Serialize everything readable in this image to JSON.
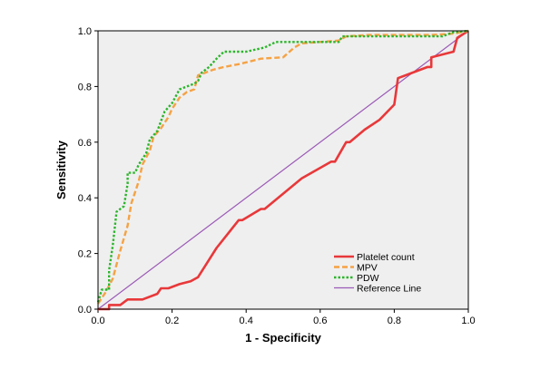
{
  "chart_data": {
    "type": "line",
    "xlabel": "1 - Specificity",
    "ylabel": "Sensitivity",
    "xlim": [
      0,
      1
    ],
    "ylim": [
      0,
      1
    ],
    "xticks": [
      "0.0",
      "0.2",
      "0.4",
      "0.6",
      "0.8",
      "1.0"
    ],
    "yticks": [
      "0.0",
      "0.2",
      "0.4",
      "0.6",
      "0.8",
      "1.0"
    ],
    "grid": false,
    "legend_position": "bottom-right",
    "plot_background": "#efefef",
    "series": [
      {
        "name": "Platelet count",
        "color": "#e8383a",
        "dash": "solid",
        "points": [
          [
            0,
            0
          ],
          [
            0.03,
            0
          ],
          [
            0.03,
            0.015
          ],
          [
            0.06,
            0.015
          ],
          [
            0.08,
            0.035
          ],
          [
            0.12,
            0.035
          ],
          [
            0.16,
            0.055
          ],
          [
            0.17,
            0.075
          ],
          [
            0.19,
            0.075
          ],
          [
            0.22,
            0.09
          ],
          [
            0.25,
            0.1
          ],
          [
            0.27,
            0.115
          ],
          [
            0.32,
            0.22
          ],
          [
            0.38,
            0.32
          ],
          [
            0.39,
            0.32
          ],
          [
            0.44,
            0.36
          ],
          [
            0.45,
            0.36
          ],
          [
            0.55,
            0.47
          ],
          [
            0.63,
            0.53
          ],
          [
            0.64,
            0.53
          ],
          [
            0.67,
            0.6
          ],
          [
            0.68,
            0.6
          ],
          [
            0.72,
            0.645
          ],
          [
            0.76,
            0.68
          ],
          [
            0.8,
            0.735
          ],
          [
            0.81,
            0.83
          ],
          [
            0.84,
            0.845
          ],
          [
            0.89,
            0.87
          ],
          [
            0.9,
            0.87
          ],
          [
            0.9,
            0.905
          ],
          [
            0.93,
            0.915
          ],
          [
            0.96,
            0.925
          ],
          [
            0.97,
            0.975
          ],
          [
            1.0,
            1.0
          ]
        ]
      },
      {
        "name": "MPV",
        "color": "#f5a244",
        "dash": "dashed",
        "points": [
          [
            0,
            0.02
          ],
          [
            0.02,
            0.06
          ],
          [
            0.04,
            0.11
          ],
          [
            0.06,
            0.21
          ],
          [
            0.08,
            0.3
          ],
          [
            0.09,
            0.38
          ],
          [
            0.11,
            0.46
          ],
          [
            0.12,
            0.52
          ],
          [
            0.14,
            0.57
          ],
          [
            0.15,
            0.62
          ],
          [
            0.17,
            0.65
          ],
          [
            0.19,
            0.69
          ],
          [
            0.2,
            0.72
          ],
          [
            0.22,
            0.76
          ],
          [
            0.24,
            0.78
          ],
          [
            0.26,
            0.79
          ],
          [
            0.27,
            0.84
          ],
          [
            0.29,
            0.85
          ],
          [
            0.31,
            0.86
          ],
          [
            0.34,
            0.87
          ],
          [
            0.38,
            0.88
          ],
          [
            0.41,
            0.89
          ],
          [
            0.44,
            0.9
          ],
          [
            0.5,
            0.905
          ],
          [
            0.53,
            0.94
          ],
          [
            0.55,
            0.955
          ],
          [
            0.6,
            0.96
          ],
          [
            0.65,
            0.965
          ],
          [
            0.67,
            0.98
          ],
          [
            0.73,
            0.985
          ],
          [
            0.9,
            0.985
          ],
          [
            0.96,
            0.99
          ],
          [
            1.0,
            1.0
          ]
        ]
      },
      {
        "name": "PDW",
        "color": "#2db52d",
        "dash": "dotted",
        "points": [
          [
            0,
            0.025
          ],
          [
            0.01,
            0.07
          ],
          [
            0.03,
            0.07
          ],
          [
            0.03,
            0.14
          ],
          [
            0.04,
            0.23
          ],
          [
            0.05,
            0.35
          ],
          [
            0.07,
            0.37
          ],
          [
            0.08,
            0.45
          ],
          [
            0.08,
            0.49
          ],
          [
            0.1,
            0.49
          ],
          [
            0.11,
            0.52
          ],
          [
            0.13,
            0.56
          ],
          [
            0.14,
            0.61
          ],
          [
            0.16,
            0.64
          ],
          [
            0.18,
            0.71
          ],
          [
            0.2,
            0.74
          ],
          [
            0.22,
            0.79
          ],
          [
            0.24,
            0.8
          ],
          [
            0.26,
            0.81
          ],
          [
            0.27,
            0.82
          ],
          [
            0.28,
            0.85
          ],
          [
            0.3,
            0.87
          ],
          [
            0.32,
            0.9
          ],
          [
            0.34,
            0.925
          ],
          [
            0.4,
            0.925
          ],
          [
            0.45,
            0.94
          ],
          [
            0.48,
            0.96
          ],
          [
            0.55,
            0.96
          ],
          [
            0.65,
            0.96
          ],
          [
            0.66,
            0.98
          ],
          [
            0.93,
            0.98
          ],
          [
            0.96,
            0.995
          ],
          [
            1.0,
            1.0
          ]
        ]
      },
      {
        "name": "Reference Line",
        "color": "#9b59b6",
        "dash": "solid",
        "points": [
          [
            0,
            0
          ],
          [
            1,
            1
          ]
        ]
      }
    ]
  }
}
